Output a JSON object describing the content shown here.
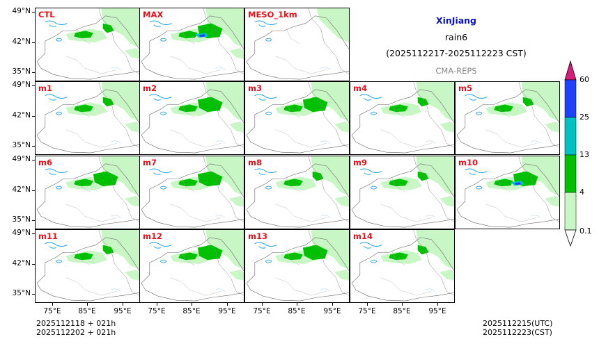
{
  "header": {
    "region": "XinJiang",
    "variable": "rain6",
    "period": "(2025112217-2025112223 CST)",
    "system": "CMA-REPS",
    "region_color": "#0a12c8",
    "system_color": "#888888"
  },
  "panels": [
    {
      "label": "CTL",
      "rain": 1
    },
    {
      "label": "MAX",
      "rain": 3
    },
    {
      "label": "MESO_1km",
      "rain": 0
    },
    {
      "label": "m1",
      "rain": 1
    },
    {
      "label": "m2",
      "rain": 2
    },
    {
      "label": "m3",
      "rain": 2
    },
    {
      "label": "m4",
      "rain": 1
    },
    {
      "label": "m5",
      "rain": 1
    },
    {
      "label": "m6",
      "rain": 2
    },
    {
      "label": "m7",
      "rain": 2
    },
    {
      "label": "m8",
      "rain": 1
    },
    {
      "label": "m9",
      "rain": 1
    },
    {
      "label": "m10",
      "rain": 3
    },
    {
      "label": "m11",
      "rain": 1
    },
    {
      "label": "m12",
      "rain": 2
    },
    {
      "label": "m13",
      "rain": 2
    },
    {
      "label": "m14",
      "rain": 1
    }
  ],
  "axes": {
    "lat_labels": [
      "49°N",
      "42°N",
      "35°N"
    ],
    "lon_labels": [
      "75°E",
      "85°E",
      "95°E"
    ]
  },
  "colorbar": {
    "levels": [
      "60",
      "25",
      "13",
      "4",
      "0.1"
    ],
    "colors": [
      "#d81b78",
      "#1e40ff",
      "#00c2c2",
      "#00c000",
      "#c8f7c5"
    ]
  },
  "footer": {
    "init_line1": "2025112118  +  021h",
    "init_line2": "2025112202  +  021h",
    "valid_utc": "2025112215(UTC)",
    "valid_cst": "2025112223(CST)"
  }
}
